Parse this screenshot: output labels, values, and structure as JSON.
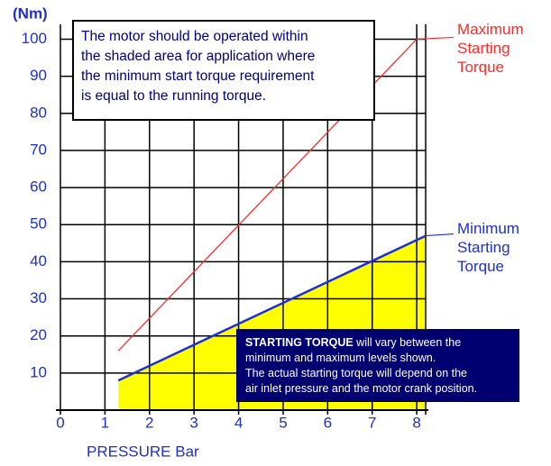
{
  "chart_data": {
    "type": "line",
    "y_unit_label": "(Nm)",
    "x_label": "PRESSURE Bar",
    "xlim": [
      0,
      8.2
    ],
    "ylim": [
      0,
      104
    ],
    "xticks": [
      0,
      1,
      2,
      3,
      4,
      5,
      6,
      7,
      8
    ],
    "yticks": [
      10,
      20,
      30,
      40,
      50,
      60,
      70,
      80,
      90,
      100
    ],
    "grid": true,
    "series": [
      {
        "name": "Maximum Starting Torque",
        "color": "#ff2a2a",
        "x": [
          1.3,
          8
        ],
        "values": [
          16,
          100
        ]
      },
      {
        "name": "Minimum Starting Torque",
        "color": "#1f2fd0",
        "x": [
          1.3,
          8.2
        ],
        "values": [
          8,
          47
        ],
        "fill": "#ffff00"
      }
    ],
    "annotations": {
      "top": [
        "The motor should be operated within",
        "the shaded area for application where",
        "the minimum start torque requirement",
        "is equal to the running torque."
      ],
      "bottom_bold": "STARTING TORQUE",
      "bottom_first_rest": " will vary between the",
      "bottom": [
        "minimum and maximum levels shown.",
        "The actual starting torque will depend on the",
        "air inlet pressure and the motor crank position."
      ]
    }
  }
}
